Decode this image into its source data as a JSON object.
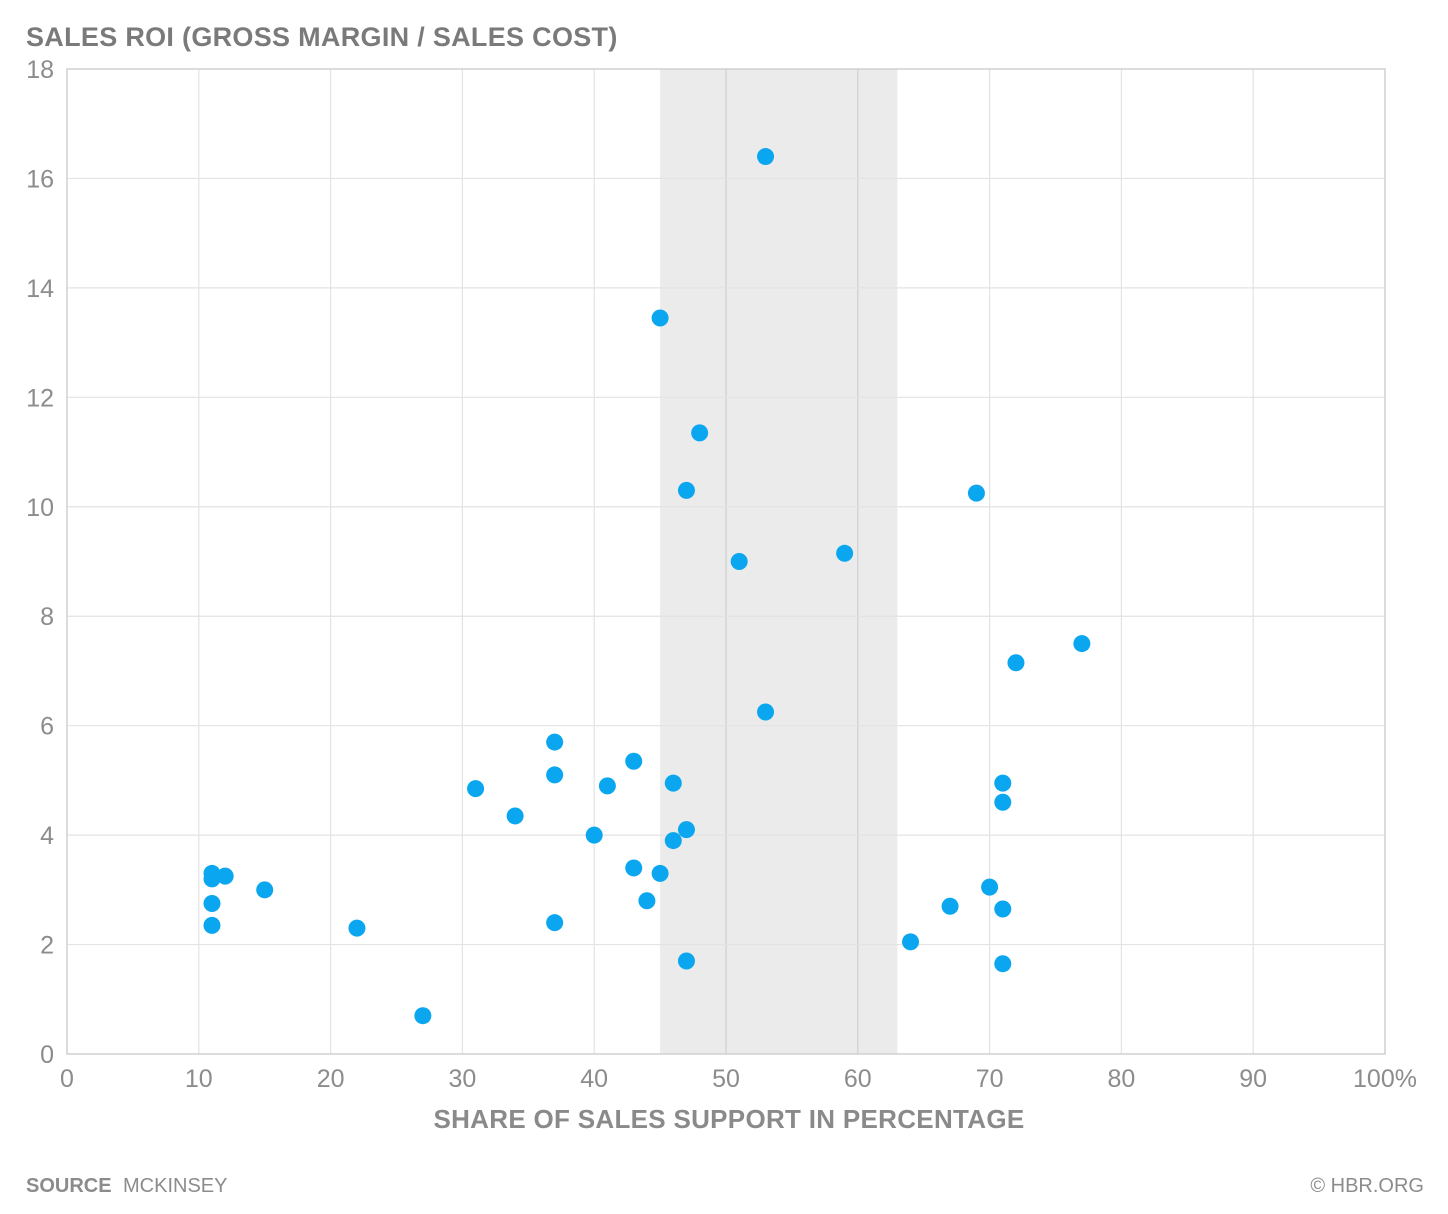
{
  "chart_data": {
    "type": "scatter",
    "title": "SALES ROI (GROSS MARGIN / SALES COST)",
    "xlabel": "SHARE OF SALES SUPPORT IN PERCENTAGE",
    "ylabel": "SALES ROI (GROSS MARGIN / SALES COST)",
    "xlim": [
      0,
      100
    ],
    "ylim": [
      0,
      18
    ],
    "x_ticks": [
      "0",
      "10",
      "20",
      "30",
      "40",
      "50",
      "60",
      "70",
      "80",
      "90",
      "100%"
    ],
    "y_ticks": [
      "0",
      "2",
      "4",
      "6",
      "8",
      "10",
      "12",
      "14",
      "16",
      "18"
    ],
    "grid": true,
    "highlight_band": {
      "x_range": [
        45,
        63
      ],
      "color": "#ebebeb"
    },
    "point_color": "#0aa7f0",
    "points": [
      {
        "x": 11,
        "y": 3.3
      },
      {
        "x": 11,
        "y": 3.2
      },
      {
        "x": 12,
        "y": 3.25
      },
      {
        "x": 11,
        "y": 2.75
      },
      {
        "x": 11,
        "y": 2.35
      },
      {
        "x": 15,
        "y": 3.0
      },
      {
        "x": 22,
        "y": 2.3
      },
      {
        "x": 27,
        "y": 0.7
      },
      {
        "x": 31,
        "y": 4.85
      },
      {
        "x": 34,
        "y": 4.35
      },
      {
        "x": 37,
        "y": 5.7
      },
      {
        "x": 37,
        "y": 5.1
      },
      {
        "x": 37,
        "y": 2.4
      },
      {
        "x": 40,
        "y": 4.0
      },
      {
        "x": 41,
        "y": 4.9
      },
      {
        "x": 43,
        "y": 5.35
      },
      {
        "x": 43,
        "y": 3.4
      },
      {
        "x": 44,
        "y": 2.8
      },
      {
        "x": 45,
        "y": 13.45
      },
      {
        "x": 45,
        "y": 3.3
      },
      {
        "x": 46,
        "y": 4.95
      },
      {
        "x": 46,
        "y": 3.9
      },
      {
        "x": 47,
        "y": 4.1
      },
      {
        "x": 47,
        "y": 10.3
      },
      {
        "x": 47,
        "y": 1.7
      },
      {
        "x": 48,
        "y": 11.35
      },
      {
        "x": 51,
        "y": 9.0
      },
      {
        "x": 53,
        "y": 16.4
      },
      {
        "x": 53,
        "y": 6.25
      },
      {
        "x": 59,
        "y": 9.15
      },
      {
        "x": 64,
        "y": 2.05
      },
      {
        "x": 67,
        "y": 2.7
      },
      {
        "x": 69,
        "y": 10.25
      },
      {
        "x": 70,
        "y": 3.05
      },
      {
        "x": 71,
        "y": 4.95
      },
      {
        "x": 71,
        "y": 4.6
      },
      {
        "x": 71,
        "y": 2.65
      },
      {
        "x": 71,
        "y": 1.65
      },
      {
        "x": 72,
        "y": 7.15
      },
      {
        "x": 77,
        "y": 7.5
      }
    ]
  },
  "footer": {
    "source_label": "SOURCE",
    "source_value": "MCKINSEY",
    "credit": "© HBR.ORG"
  }
}
